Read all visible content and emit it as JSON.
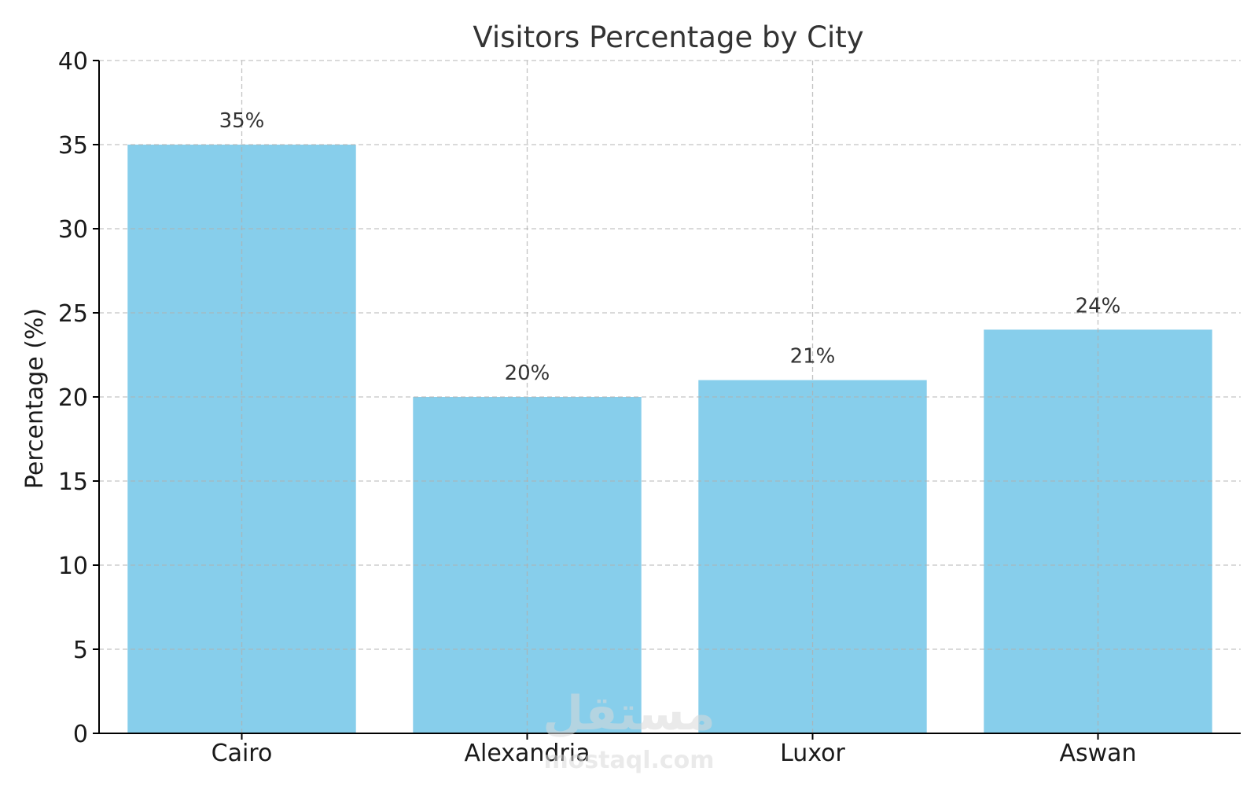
{
  "chart_data": {
    "type": "bar",
    "title": "Visitors Percentage by City",
    "xlabel": "",
    "ylabel": "Percentage (%)",
    "categories": [
      "Cairo",
      "Alexandria",
      "Luxor",
      "Aswan"
    ],
    "values": [
      35,
      20,
      21,
      24
    ],
    "data_labels": [
      "35%",
      "20%",
      "21%",
      "24%"
    ],
    "ylim": [
      0,
      40
    ],
    "yticks": [
      0,
      5,
      10,
      15,
      20,
      25,
      30,
      35,
      40
    ],
    "grid": true,
    "bar_color": "#87CEEB"
  },
  "watermark": {
    "arabic": "مستقل",
    "latin": "mostaql.com"
  }
}
